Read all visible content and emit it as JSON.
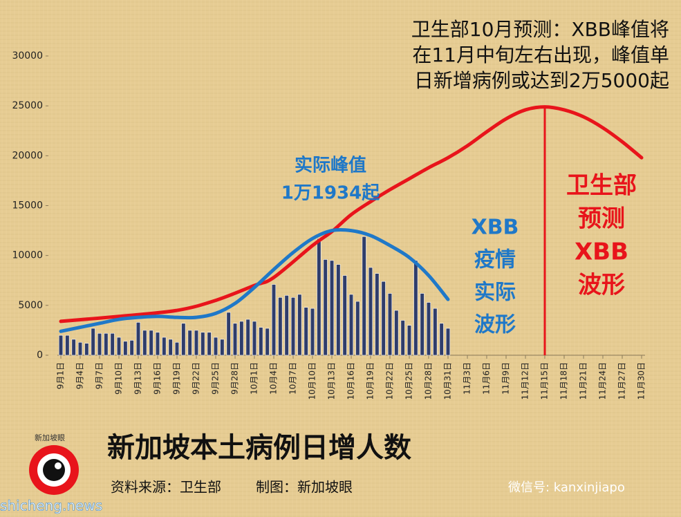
{
  "chart_data": {
    "type": "bar",
    "headline": [
      "卫生部10月预测：XBB峰值将",
      "在11月中旬左右出现，峰值单",
      "日新增病例或达到2万5000起"
    ],
    "title": "新加坡本土病例日增人数",
    "source": "资料来源：卫生部",
    "credit": "制图：新加坡眼",
    "wechat": "微信号: kanxinjiapo",
    "logo": "新加坡眼",
    "watermark": "shicheng.news",
    "categories": [
      "9月1日",
      null,
      null,
      "9月4日",
      null,
      null,
      "9月7日",
      null,
      null,
      "9月10日",
      null,
      null,
      "9月13日",
      null,
      null,
      "9月16日",
      null,
      null,
      "9月19日",
      null,
      null,
      "9月22日",
      null,
      null,
      "9月25日",
      null,
      null,
      "9月28日",
      null,
      null,
      "10月1日",
      null,
      null,
      "10月4日",
      null,
      null,
      "10月7日",
      null,
      null,
      "10月10日",
      null,
      null,
      "10月13日",
      null,
      null,
      "10月16日",
      null,
      null,
      "10月19日",
      null,
      null,
      "10月22日",
      null,
      null,
      "10月25日",
      null,
      null,
      "10月28日",
      null,
      null,
      "10月31日",
      null,
      null,
      "11月3日",
      null,
      null,
      "11月6日",
      null,
      null,
      "11月9日",
      null,
      null,
      "11月12日",
      null,
      null,
      "11月15日",
      null,
      null,
      "11月18日",
      null,
      null,
      "11月21日",
      null,
      null,
      "11月24日",
      null,
      null,
      "11月27日",
      null,
      null,
      "11月30日"
    ],
    "values": [
      2000,
      2000,
      1600,
      1300,
      1200,
      2700,
      2200,
      2200,
      2200,
      1800,
      1400,
      1500,
      3300,
      2500,
      2500,
      2300,
      1800,
      1600,
      1300,
      3200,
      2500,
      2500,
      2300,
      2300,
      1800,
      1600,
      4300,
      3200,
      3400,
      3600,
      3400,
      2800,
      2700,
      7100,
      5800,
      6000,
      5800,
      6100,
      4800,
      4700,
      11700,
      9600,
      9500,
      9100,
      8000,
      6100,
      5400,
      11900,
      8800,
      8200,
      7400,
      6200,
      4500,
      3500,
      3000,
      9500,
      6200,
      5300,
      4700,
      3200,
      2700,
      null,
      null,
      null,
      null,
      null,
      null,
      null,
      null,
      null,
      null,
      null,
      null,
      null,
      null,
      null,
      null,
      null,
      null,
      null,
      null,
      null,
      null,
      null,
      null,
      null,
      null,
      null,
      null,
      null,
      null
    ],
    "color": "#2f3d6b",
    "ylim": [
      0,
      30000
    ],
    "yticks": [
      0,
      5000,
      10000,
      15000,
      20000,
      25000,
      30000
    ],
    "curves": [
      {
        "color": "#e8141b",
        "x": [
          "9月1日",
          "9月10日",
          "9月19日",
          "9月25日",
          "10月1日",
          "10月4日",
          "10月10日",
          "10月13日",
          "10月16日",
          "10月19日",
          "10月22日",
          "10月25日",
          "10月28日",
          "10月31日",
          "11月3日",
          "11月6日",
          "11月9日",
          "11月12日",
          "11月15日",
          "11月18日",
          "11月21日",
          "11月24日",
          "11月27日",
          "11月30日"
        ],
        "values": [
          3400,
          3900,
          4500,
          5500,
          7000,
          7800,
          11000,
          12400,
          14100,
          15400,
          16600,
          17700,
          18800,
          19800,
          21000,
          22400,
          23700,
          24600,
          24900,
          24600,
          23900,
          22800,
          21400,
          19800
        ]
      },
      {
        "color": "#1f78c8",
        "x": [
          "9月1日",
          "9月4日",
          "9月7日",
          "9月10日",
          "9月13日",
          "9月16日",
          "9月19日",
          "9月22日",
          "9月25日",
          "9月28日",
          "10月1日",
          "10月4日",
          "10月7日",
          "10月10日",
          "10月13日",
          "10月16日",
          "10月19日",
          "10月22日",
          "10月25日",
          "10月28日",
          "10月31日"
        ],
        "values": [
          2400,
          2800,
          3200,
          3600,
          3800,
          3900,
          3800,
          3800,
          4200,
          5200,
          6800,
          8600,
          10300,
          11700,
          12500,
          12500,
          12000,
          11000,
          9800,
          8000,
          5600
        ]
      }
    ],
    "peak_marker": {
      "x": "11月15日",
      "value": 24900,
      "color": "#e8141b"
    },
    "annotations": [
      {
        "lines": [
          "实际峰值",
          "1万1934起"
        ],
        "color": "#1f78c8"
      },
      {
        "lines": [
          "XBB",
          "疫情",
          "实际",
          "波形"
        ],
        "color": "#1f78c8"
      },
      {
        "lines": [
          "卫生部",
          "预测",
          "XBB",
          "波形"
        ],
        "color": "#e8141b"
      }
    ]
  }
}
